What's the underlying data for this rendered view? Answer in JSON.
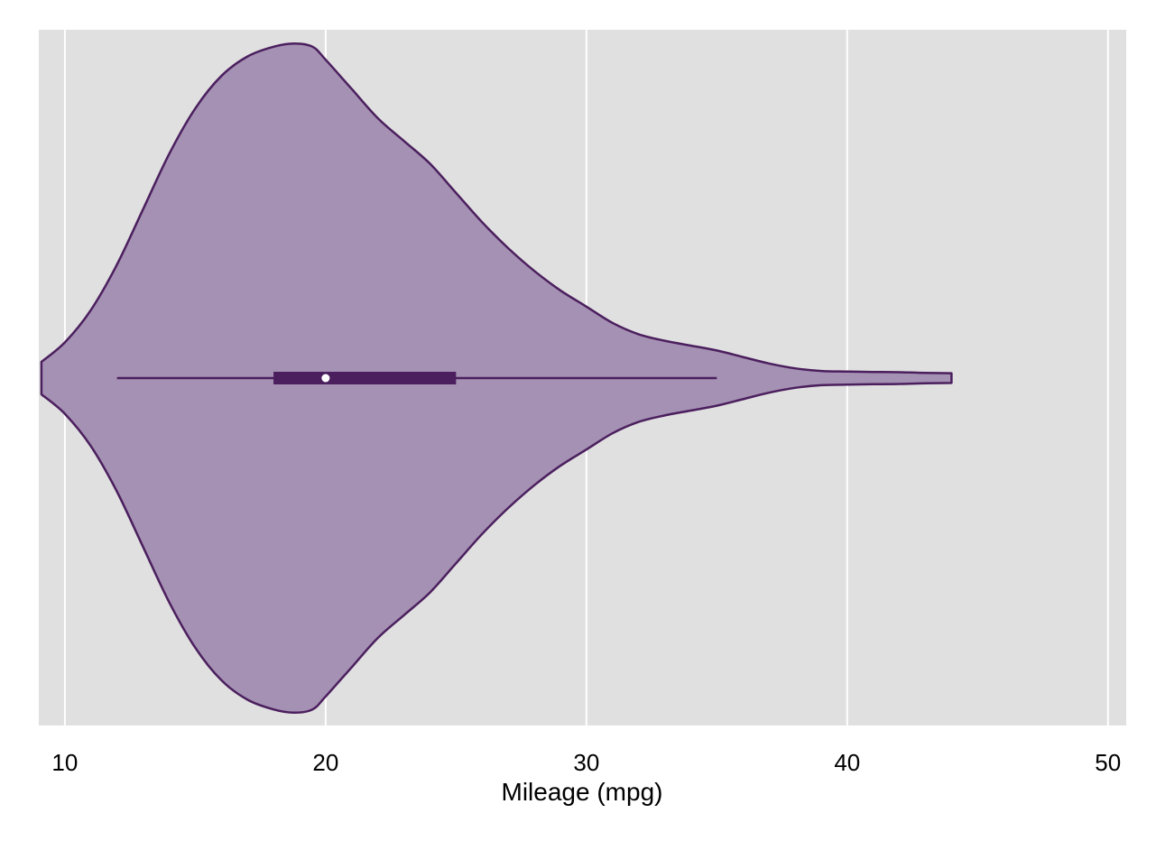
{
  "chart_data": {
    "type": "violin",
    "orientation": "horizontal",
    "xlabel": "Mileage (mpg)",
    "xlim": [
      9,
      50.7
    ],
    "xticks": [
      10,
      20,
      30,
      40,
      50
    ],
    "xtick_labels": [
      "10",
      "20",
      "30",
      "40",
      "50"
    ],
    "grid": "vertical",
    "legend": "none",
    "series": [
      {
        "density_profile": {
          "x": [
            9.1,
            10,
            11,
            12,
            13,
            14,
            15,
            16,
            17,
            18,
            18.8,
            19.5,
            20,
            21,
            22,
            23,
            24,
            25,
            26,
            27,
            28,
            29,
            30,
            31,
            32,
            33,
            34,
            35,
            36,
            37,
            38,
            39,
            40,
            41,
            42,
            43,
            44
          ],
          "half_width": [
            0.05,
            0.11,
            0.21,
            0.35,
            0.52,
            0.69,
            0.83,
            0.93,
            0.99,
            1.02,
            1.03,
            1.02,
            0.98,
            0.89,
            0.8,
            0.73,
            0.66,
            0.57,
            0.48,
            0.4,
            0.33,
            0.27,
            0.22,
            0.17,
            0.135,
            0.115,
            0.1,
            0.085,
            0.065,
            0.045,
            0.03,
            0.022,
            0.02,
            0.019,
            0.018,
            0.016,
            0.015
          ]
        },
        "whisker_low": 12,
        "q1": 18,
        "median": 20,
        "q3": 25,
        "whisker_high": 35
      }
    ],
    "colors": {
      "fill": "#a591b3",
      "outline": "#4b1f5e",
      "box": "#4b1f5e",
      "median_dot": "#ffffff",
      "plot_background": "#e0e0e0",
      "gridline": "#ffffff"
    }
  }
}
